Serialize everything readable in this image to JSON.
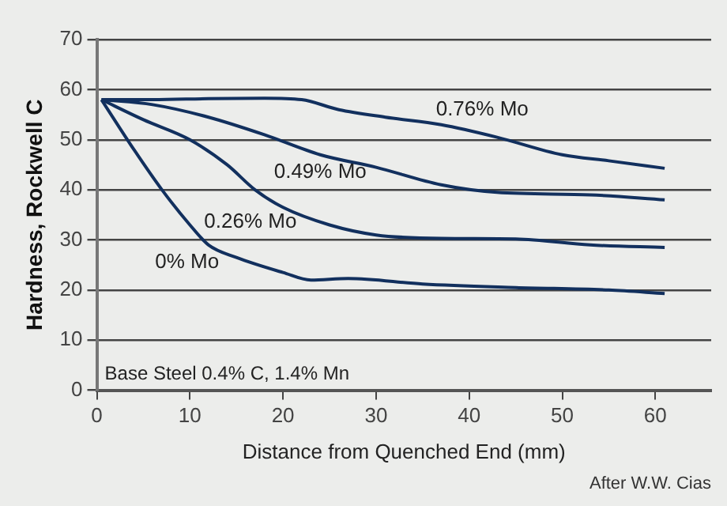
{
  "chart_data": {
    "type": "line",
    "xlabel": "Distance from Quenched End (mm)",
    "ylabel": "Hardness, Rockwell C",
    "xlim": [
      0,
      66
    ],
    "xticks": [
      0,
      10,
      20,
      30,
      40,
      50,
      60
    ],
    "ylim": [
      0,
      70
    ],
    "yticks": [
      0,
      10,
      20,
      30,
      40,
      50,
      60,
      70
    ],
    "grid": "y",
    "legend": false,
    "marker": "none",
    "line_style": "solid",
    "annotations": [
      "Base Steel 0.4% C, 1.4% Mn",
      "After W.W. Cias"
    ],
    "series": [
      {
        "name": "0.76% Mo",
        "color": "#12305e",
        "x": [
          0.5,
          6,
          12,
          18,
          22,
          26,
          31,
          37,
          43,
          50,
          55,
          61
        ],
        "values": [
          58,
          58,
          58.2,
          58.3,
          58,
          56,
          54.5,
          53,
          50.5,
          47,
          45.8,
          44.3
        ]
      },
      {
        "name": "0.49% Mo",
        "color": "#12305e",
        "x": [
          0.5,
          6,
          12,
          18,
          24,
          30,
          37,
          43,
          53,
          61
        ],
        "values": [
          58,
          57,
          54.5,
          51,
          47,
          44.5,
          41,
          39.5,
          39,
          38
        ]
      },
      {
        "name": "0.26% Mo",
        "color": "#12305e",
        "x": [
          0.5,
          5,
          10,
          14,
          17,
          20,
          25,
          30,
          37,
          45,
          53,
          61
        ],
        "values": [
          58,
          54,
          50,
          45,
          40,
          36.5,
          33,
          31,
          30.3,
          30.2,
          29,
          28.5
        ]
      },
      {
        "name": "0% Mo",
        "color": "#12305e",
        "x": [
          0.5,
          4,
          7,
          10,
          12,
          15,
          20,
          23,
          27,
          35,
          45,
          55,
          61
        ],
        "values": [
          58,
          48,
          40,
          33,
          29,
          26.5,
          23.5,
          22,
          22.3,
          21.2,
          20.5,
          20,
          19.3
        ]
      }
    ]
  }
}
